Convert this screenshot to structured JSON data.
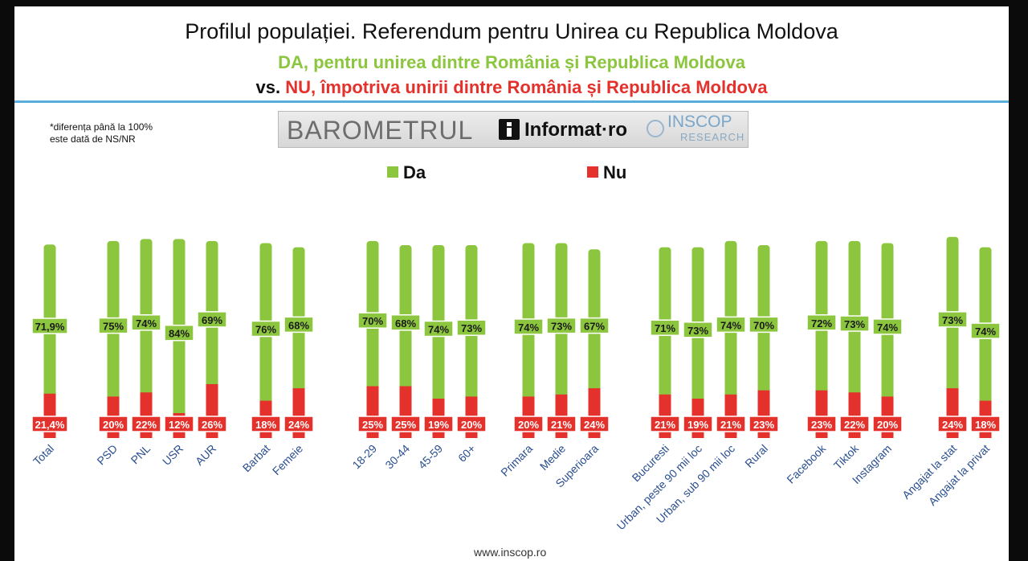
{
  "header": {
    "title": "Profilul populației. Referendum pentru Unirea cu Republica Moldova",
    "subtitle_da": "DA, pentru unirea dintre România și Republica Moldova",
    "subtitle_vs": "vs.",
    "subtitle_nu": "NU, împotriva unirii dintre România și Republica Moldova"
  },
  "note": {
    "line1": "*diferența până la 100%",
    "line2": "este dată de NS/NR"
  },
  "logo": {
    "barometrul": "BAROMETRUL",
    "informat": "Informat·ro",
    "inscop": "INSCOP",
    "research": "RESEARCH"
  },
  "footer": {
    "url": "www.inscop.ro"
  },
  "colors": {
    "da": "#8cc63f",
    "nu": "#e4312b",
    "rule": "#5aaedc"
  },
  "chart_data": {
    "type": "bar",
    "stacked": true,
    "legend": "top",
    "categories": [
      "Total",
      "PSD",
      "PNL",
      "USR",
      "AUR",
      "Barbat",
      "Femeie",
      "18-29",
      "30-44",
      "45-59",
      "60+",
      "Primara",
      "Medie",
      "Superioara",
      "Bucuresti",
      "Urban, peste 90 mii loc",
      "Urban, sub 90 mii loc",
      "Rural",
      "Facebook",
      "Tiktok",
      "Instagram",
      "Angajat la stat",
      "Angajat la privat"
    ],
    "groups": [
      [
        0
      ],
      [
        1,
        2,
        3,
        4
      ],
      [
        5,
        6
      ],
      [
        7,
        8,
        9,
        10
      ],
      [
        11,
        12,
        13
      ],
      [
        14,
        15,
        16,
        17
      ],
      [
        18,
        19,
        20
      ],
      [
        21,
        22
      ]
    ],
    "series": [
      {
        "name": "Da",
        "color": "#8cc63f",
        "values": [
          71.9,
          75,
          74,
          84,
          69,
          76,
          68,
          70,
          68,
          74,
          73,
          74,
          73,
          67,
          71,
          73,
          74,
          70,
          72,
          73,
          74,
          73,
          74
        ],
        "labels": [
          "71,9%",
          "75%",
          "74%",
          "84%",
          "69%",
          "76%",
          "68%",
          "70%",
          "68%",
          "74%",
          "73%",
          "74%",
          "73%",
          "67%",
          "71%",
          "73%",
          "74%",
          "70%",
          "72%",
          "73%",
          "74%",
          "73%",
          "74%"
        ]
      },
      {
        "name": "Nu",
        "color": "#e4312b",
        "values": [
          21.4,
          20,
          22,
          12,
          26,
          18,
          24,
          25,
          25,
          19,
          20,
          20,
          21,
          24,
          21,
          19,
          21,
          23,
          23,
          22,
          20,
          24,
          18
        ],
        "labels": [
          "21,4%",
          "20%",
          "22%",
          "12%",
          "26%",
          "18%",
          "24%",
          "25%",
          "25%",
          "19%",
          "20%",
          "20%",
          "21%",
          "24%",
          "21%",
          "19%",
          "21%",
          "23%",
          "23%",
          "22%",
          "20%",
          "24%",
          "18%"
        ]
      }
    ]
  }
}
